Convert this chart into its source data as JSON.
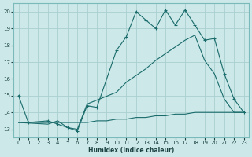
{
  "background_color": "#cce8e8",
  "grid_color": "#aacfcf",
  "line_color": "#1a6b6b",
  "xlabel": "Humidex (Indice chaleur)",
  "xlim": [
    -0.5,
    23.5
  ],
  "ylim": [
    12.5,
    20.5
  ],
  "yticks": [
    13,
    14,
    15,
    16,
    17,
    18,
    19,
    20
  ],
  "xticks": [
    0,
    1,
    2,
    3,
    4,
    5,
    6,
    7,
    8,
    9,
    10,
    11,
    12,
    13,
    14,
    15,
    16,
    17,
    18,
    19,
    20,
    21,
    22,
    23
  ],
  "series1_x": [
    0,
    1,
    3,
    4,
    5,
    6,
    7,
    8,
    10,
    11,
    12,
    13,
    14,
    15,
    16,
    17,
    18,
    19,
    20,
    21,
    22,
    23
  ],
  "series1_y": [
    15.0,
    13.4,
    13.5,
    13.3,
    13.1,
    12.9,
    14.4,
    14.3,
    17.7,
    18.5,
    20.0,
    19.5,
    19.0,
    20.1,
    19.2,
    20.1,
    19.2,
    18.3,
    18.4,
    16.3,
    14.8,
    14.0
  ],
  "series2_x": [
    0,
    3,
    4,
    5,
    6,
    7,
    10,
    11,
    12,
    13,
    14,
    15,
    16,
    17,
    18,
    19,
    20,
    21,
    22,
    23
  ],
  "series2_y": [
    13.4,
    13.3,
    13.5,
    13.1,
    13.0,
    14.5,
    15.2,
    15.8,
    16.2,
    16.6,
    17.1,
    17.5,
    17.9,
    18.3,
    18.6,
    17.1,
    16.3,
    14.8,
    14.0,
    14.0
  ],
  "series3_x": [
    0,
    1,
    3,
    4,
    5,
    6,
    7,
    8,
    9,
    10,
    11,
    12,
    13,
    14,
    15,
    16,
    17,
    18,
    19,
    20,
    21,
    22,
    23
  ],
  "series3_y": [
    13.4,
    13.4,
    13.4,
    13.4,
    13.4,
    13.4,
    13.4,
    13.5,
    13.5,
    13.6,
    13.6,
    13.7,
    13.7,
    13.8,
    13.8,
    13.9,
    13.9,
    14.0,
    14.0,
    14.0,
    14.0,
    14.0,
    14.0
  ]
}
